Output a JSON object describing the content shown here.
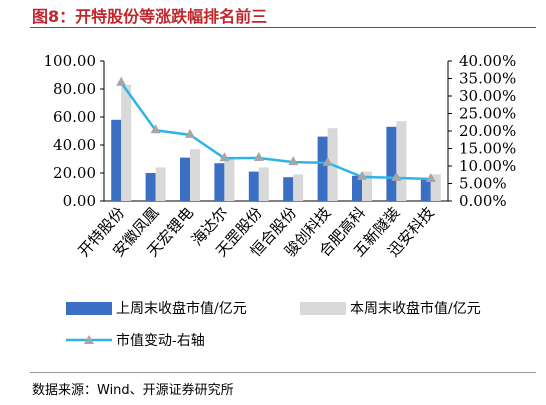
{
  "title": "图8：开特股份等涨跌幅排名前三",
  "source": "数据来源：Wind、开源证券研究所",
  "colors": {
    "title": "#c0272d",
    "bar_prev": "#3a6fc4",
    "bar_curr": "#d9d9d9",
    "line": "#2eb4e6",
    "marker": "#a6a6a6"
  },
  "chart_data": {
    "type": "bar",
    "title": "",
    "categories": [
      "开特股份",
      "安徽凤凰",
      "天宏锂电",
      "海达尔",
      "天罡股份",
      "恒合股份",
      "骏创科技",
      "合肥高科",
      "五新隧装",
      "迅安科技"
    ],
    "left_axis": {
      "ylim": [
        0,
        100
      ],
      "ticks": [
        "0.00",
        "20.00",
        "40.00",
        "60.00",
        "80.00",
        "100.00"
      ]
    },
    "right_axis": {
      "ylim": [
        0,
        40
      ],
      "ticks": [
        "0.00%",
        "5.00%",
        "10.00%",
        "15.00%",
        "20.00%",
        "25.00%",
        "30.00%",
        "35.00%",
        "40.00%"
      ]
    },
    "series": [
      {
        "name": "上周末收盘市值/亿元",
        "type": "bar",
        "axis": "left",
        "values": [
          58,
          20,
          31,
          27,
          21,
          17,
          46,
          18,
          53,
          16
        ]
      },
      {
        "name": "本周末收盘市值/亿元",
        "type": "bar",
        "axis": "left",
        "values": [
          83,
          24,
          37,
          30,
          24,
          19,
          52,
          21,
          57,
          19
        ]
      },
      {
        "name": "市值变动-右轴",
        "type": "line",
        "axis": "right",
        "values": [
          33.8,
          20.2,
          18.9,
          12.2,
          12.3,
          11.1,
          10.9,
          6.9,
          6.6,
          6.3
        ]
      }
    ],
    "legend_position": "bottom",
    "grid": false
  }
}
